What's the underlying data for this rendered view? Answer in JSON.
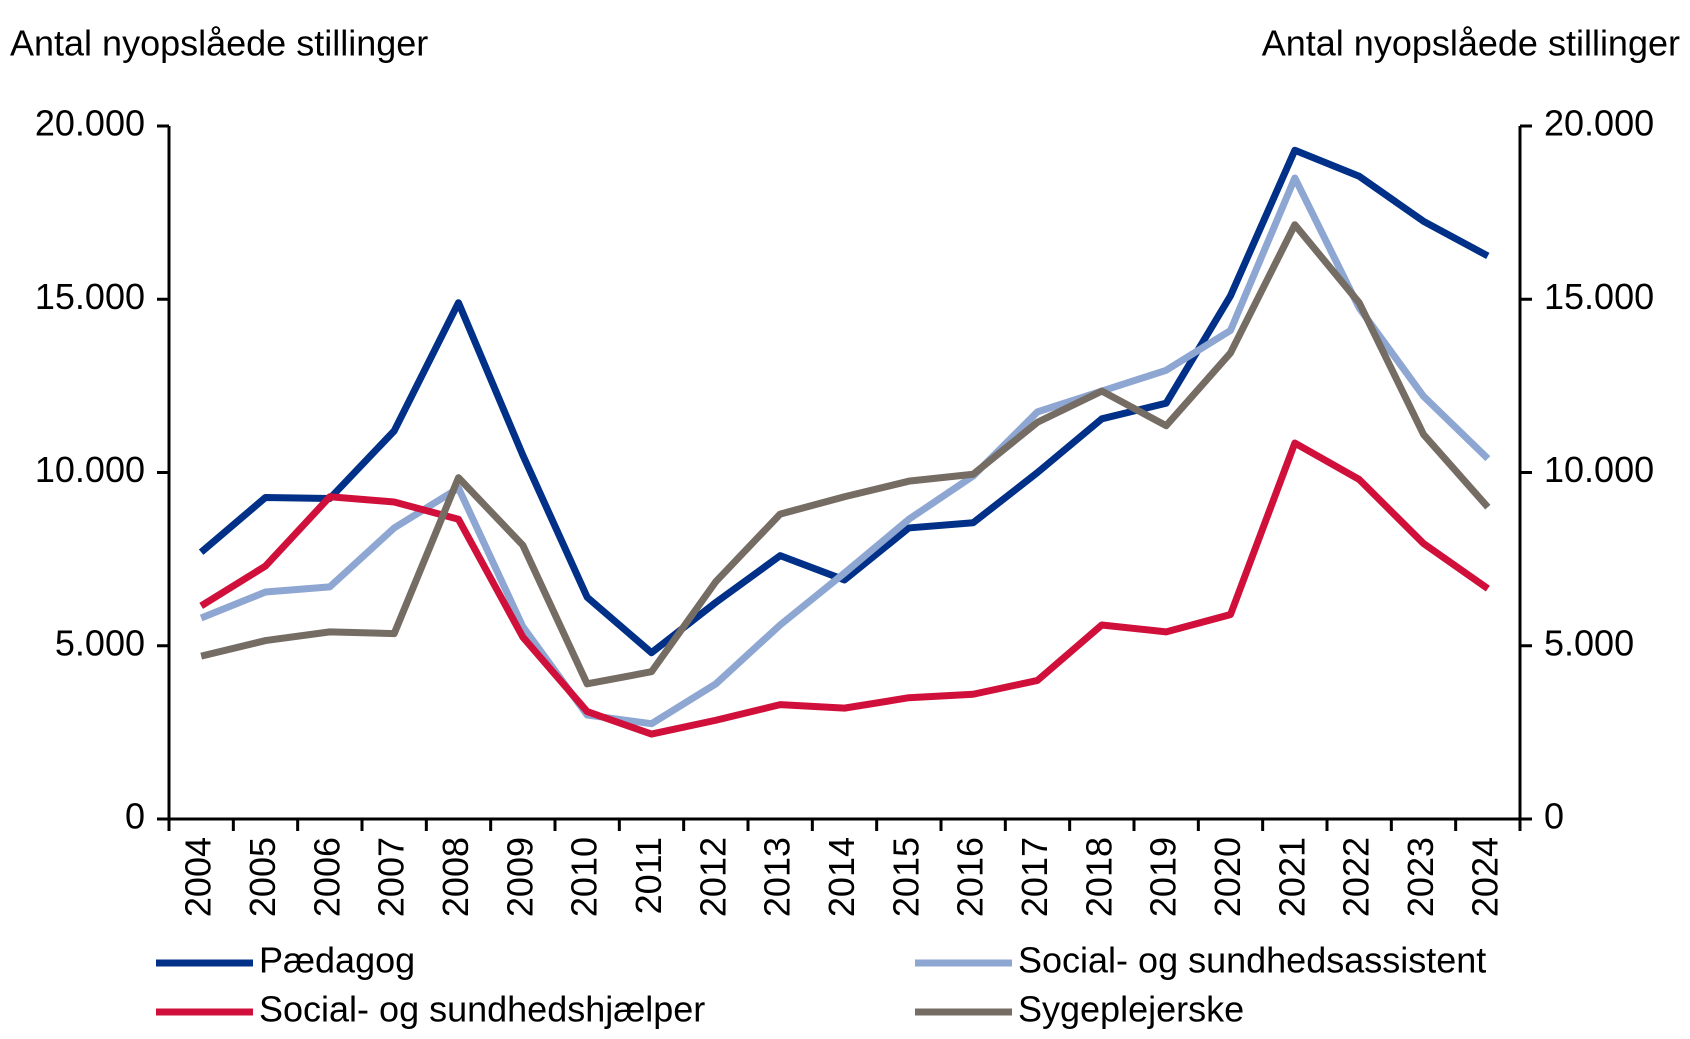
{
  "chart_data": {
    "type": "line",
    "y_label": "Antal nyopslåede stillinger",
    "y2_label": "Antal nyopslåede stillinger",
    "categories": [
      "2004",
      "2005",
      "2006",
      "2007",
      "2008",
      "2009",
      "2010",
      "2011",
      "2012",
      "2013",
      "2014",
      "2015",
      "2016",
      "2017",
      "2018",
      "2019",
      "2020",
      "2021",
      "2022",
      "2023",
      "2024"
    ],
    "series": [
      {
        "name": "Pædagog",
        "color": "#003087",
        "values": [
          7700,
          9280,
          9250,
          11200,
          14900,
          10500,
          6400,
          4800,
          6250,
          7600,
          6900,
          8400,
          8550,
          10000,
          11550,
          12000,
          15100,
          19300,
          18550,
          17250,
          16250
        ]
      },
      {
        "name": "Social- og sundhedsassistent",
        "color": "#8ea6d2",
        "values": [
          5800,
          6550,
          6700,
          8400,
          9550,
          5550,
          3000,
          2750,
          3900,
          5600,
          7100,
          8650,
          9900,
          11750,
          12350,
          12950,
          14100,
          18500,
          14750,
          12200,
          10400
        ]
      },
      {
        "name": "Social- og sundhedshjælper",
        "color": "#d0103a",
        "values": [
          6150,
          7300,
          9300,
          9150,
          8650,
          5250,
          3100,
          2450,
          2850,
          3300,
          3200,
          3500,
          3600,
          4000,
          5600,
          5400,
          5900,
          10850,
          9800,
          7950,
          6650
        ]
      },
      {
        "name": "Sygeplejerske",
        "color": "#756c64",
        "values": [
          4700,
          5150,
          5400,
          5350,
          9850,
          7900,
          3900,
          4250,
          6850,
          8800,
          9300,
          9750,
          9950,
          11450,
          12350,
          11350,
          13450,
          17150,
          14900,
          11100,
          9000
        ]
      }
    ],
    "ylim": [
      0,
      20000
    ],
    "yticks": [
      0,
      {
        "value": 5000,
        "label": "5.000"
      },
      {
        "value": 10000,
        "label": "10.000"
      },
      {
        "value": 15000,
        "label": "15.000"
      },
      {
        "value": 20000,
        "label": "20.000"
      }
    ],
    "y2lim": [
      0,
      20000
    ],
    "y2ticks": [
      0,
      {
        "value": 5000,
        "label": "5.000"
      },
      {
        "value": 10000,
        "label": "10.000"
      },
      {
        "value": 15000,
        "label": "15.000"
      },
      {
        "value": 20000,
        "label": "20.000"
      }
    ]
  }
}
